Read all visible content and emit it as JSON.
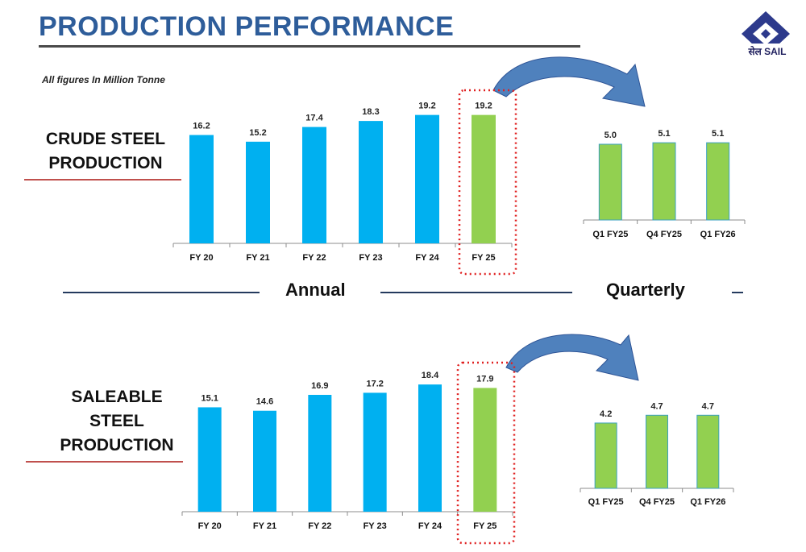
{
  "header": {
    "title": "PRODUCTION PERFORMANCE",
    "logo_text": "सेल SAIL",
    "note": "All figures In Million Tonne"
  },
  "sections": {
    "crude": [
      "CRUDE STEEL",
      "PRODUCTION"
    ],
    "saleable": [
      "SALEABLE",
      "STEEL",
      "PRODUCTION"
    ]
  },
  "divider": {
    "annual": "Annual",
    "quarterly": "Quarterly"
  },
  "colors": {
    "annual_bar": "#00b0f0",
    "highlight_bar": "#92d050",
    "title": "#2e5d9a",
    "arrow": "#4f81bd",
    "highlight_box": "#e02020"
  },
  "chart_data": [
    {
      "type": "bar",
      "categories": [
        "FY 20",
        "FY 21",
        "FY 22",
        "FY 23",
        "FY 24",
        "FY 25"
      ],
      "values": [
        16.2,
        15.2,
        17.4,
        18.3,
        19.2,
        19.2
      ],
      "highlight_index": 5
    },
    {
      "type": "bar",
      "categories": [
        "Q1 FY25",
        "Q4 FY25",
        "Q1 FY26"
      ],
      "values": [
        5.0,
        5.1,
        5.1
      ]
    },
    {
      "type": "bar",
      "categories": [
        "FY 20",
        "FY 21",
        "FY 22",
        "FY 23",
        "FY 24",
        "FY 25"
      ],
      "values": [
        15.1,
        14.6,
        16.9,
        17.2,
        18.4,
        17.9
      ],
      "highlight_index": 5
    },
    {
      "type": "bar",
      "categories": [
        "Q1 FY25",
        "Q4 FY25",
        "Q1 FY26"
      ],
      "values": [
        4.2,
        4.7,
        4.7
      ]
    }
  ]
}
